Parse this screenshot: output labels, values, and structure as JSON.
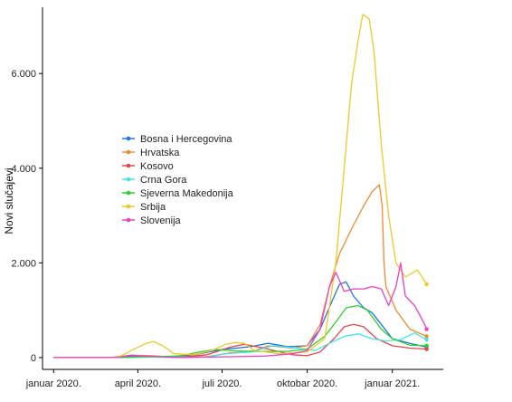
{
  "chart_data": {
    "type": "line",
    "ylabel": "Novi slučajevi",
    "xlabel": "",
    "x_ticks": [
      "januar 2020.",
      "april 2020.",
      "juli 2020.",
      "oktobar 2020.",
      "januar 2021."
    ],
    "y_ticks": [
      "0",
      "2.000",
      "4.000",
      "6.000"
    ],
    "ylim": [
      -250,
      7400
    ],
    "legend_position": "center-left",
    "grid": false,
    "series": [
      {
        "name": "Bosna i Hercegovina",
        "color": "#1f77e4",
        "points": [
          [
            "2020-01-01",
            0
          ],
          [
            "2020-03-01",
            0
          ],
          [
            "2020-04-01",
            30
          ],
          [
            "2020-05-01",
            15
          ],
          [
            "2020-06-01",
            60
          ],
          [
            "2020-07-01",
            170
          ],
          [
            "2020-08-01",
            230
          ],
          [
            "2020-08-20",
            300
          ],
          [
            "2020-09-10",
            230
          ],
          [
            "2020-10-01",
            250
          ],
          [
            "2020-10-15",
            600
          ],
          [
            "2020-10-28",
            1200
          ],
          [
            "2020-11-05",
            1550
          ],
          [
            "2020-11-12",
            1600
          ],
          [
            "2020-11-20",
            1300
          ],
          [
            "2020-12-01",
            1050
          ],
          [
            "2020-12-10",
            950
          ],
          [
            "2020-12-20",
            700
          ],
          [
            "2021-01-01",
            400
          ],
          [
            "2021-01-20",
            300
          ],
          [
            "2021-02-07",
            220
          ]
        ]
      },
      {
        "name": "Hrvatska",
        "color": "#f08a32",
        "points": [
          [
            "2020-01-01",
            0
          ],
          [
            "2020-03-01",
            0
          ],
          [
            "2020-03-25",
            50
          ],
          [
            "2020-04-15",
            40
          ],
          [
            "2020-05-15",
            5
          ],
          [
            "2020-06-15",
            20
          ],
          [
            "2020-07-10",
            100
          ],
          [
            "2020-08-01",
            120
          ],
          [
            "2020-08-20",
            250
          ],
          [
            "2020-09-15",
            200
          ],
          [
            "2020-10-01",
            250
          ],
          [
            "2020-10-15",
            700
          ],
          [
            "2020-10-25",
            1500
          ],
          [
            "2020-11-05",
            2200
          ],
          [
            "2020-11-20",
            2800
          ],
          [
            "2020-12-01",
            3200
          ],
          [
            "2020-12-10",
            3500
          ],
          [
            "2020-12-18",
            3650
          ],
          [
            "2020-12-21",
            3200
          ],
          [
            "2020-12-23",
            2000
          ],
          [
            "2020-12-25",
            1500
          ],
          [
            "2021-01-05",
            1000
          ],
          [
            "2021-01-20",
            600
          ],
          [
            "2021-02-07",
            450
          ]
        ]
      },
      {
        "name": "Kosovo",
        "color": "#e8454a",
        "points": [
          [
            "2020-01-01",
            0
          ],
          [
            "2020-03-15",
            0
          ],
          [
            "2020-04-10",
            20
          ],
          [
            "2020-05-15",
            5
          ],
          [
            "2020-06-15",
            60
          ],
          [
            "2020-07-10",
            220
          ],
          [
            "2020-07-25",
            280
          ],
          [
            "2020-08-15",
            200
          ],
          [
            "2020-09-15",
            60
          ],
          [
            "2020-10-01",
            40
          ],
          [
            "2020-10-15",
            120
          ],
          [
            "2020-10-30",
            400
          ],
          [
            "2020-11-10",
            650
          ],
          [
            "2020-11-20",
            700
          ],
          [
            "2020-12-01",
            650
          ],
          [
            "2020-12-15",
            400
          ],
          [
            "2021-01-01",
            250
          ],
          [
            "2021-01-20",
            200
          ],
          [
            "2021-02-07",
            180
          ]
        ]
      },
      {
        "name": "Crna Gora",
        "color": "#3fe8e8",
        "points": [
          [
            "2020-01-01",
            0
          ],
          [
            "2020-03-20",
            0
          ],
          [
            "2020-04-10",
            10
          ],
          [
            "2020-05-15",
            0
          ],
          [
            "2020-06-15",
            10
          ],
          [
            "2020-07-05",
            80
          ],
          [
            "2020-08-01",
            120
          ],
          [
            "2020-08-25",
            250
          ],
          [
            "2020-09-20",
            200
          ],
          [
            "2020-10-10",
            150
          ],
          [
            "2020-10-25",
            300
          ],
          [
            "2020-11-10",
            450
          ],
          [
            "2020-11-25",
            500
          ],
          [
            "2020-12-10",
            400
          ],
          [
            "2020-12-25",
            350
          ],
          [
            "2021-01-10",
            380
          ],
          [
            "2021-01-25",
            520
          ],
          [
            "2021-02-07",
            380
          ]
        ]
      },
      {
        "name": "Sjeverna Makedonija",
        "color": "#2fcf2f",
        "points": [
          [
            "2020-01-01",
            0
          ],
          [
            "2020-03-15",
            0
          ],
          [
            "2020-04-10",
            20
          ],
          [
            "2020-05-15",
            30
          ],
          [
            "2020-06-10",
            130
          ],
          [
            "2020-06-25",
            170
          ],
          [
            "2020-07-15",
            140
          ],
          [
            "2020-08-10",
            130
          ],
          [
            "2020-09-10",
            130
          ],
          [
            "2020-10-01",
            180
          ],
          [
            "2020-10-20",
            450
          ],
          [
            "2020-11-01",
            750
          ],
          [
            "2020-11-12",
            1050
          ],
          [
            "2020-11-25",
            1100
          ],
          [
            "2020-12-05",
            1000
          ],
          [
            "2020-12-20",
            600
          ],
          [
            "2021-01-01",
            400
          ],
          [
            "2021-01-20",
            260
          ],
          [
            "2021-02-07",
            250
          ]
        ]
      },
      {
        "name": "Srbija",
        "color": "#f0c828",
        "points": [
          [
            "2020-01-01",
            0
          ],
          [
            "2020-03-10",
            0
          ],
          [
            "2020-03-25",
            150
          ],
          [
            "2020-04-10",
            300
          ],
          [
            "2020-04-18",
            340
          ],
          [
            "2020-04-28",
            250
          ],
          [
            "2020-05-10",
            80
          ],
          [
            "2020-06-01",
            60
          ],
          [
            "2020-06-20",
            150
          ],
          [
            "2020-07-05",
            280
          ],
          [
            "2020-07-15",
            320
          ],
          [
            "2020-07-25",
            300
          ],
          [
            "2020-08-05",
            150
          ],
          [
            "2020-09-01",
            80
          ],
          [
            "2020-10-01",
            120
          ],
          [
            "2020-10-20",
            400
          ],
          [
            "2020-11-01",
            2000
          ],
          [
            "2020-11-10",
            4000
          ],
          [
            "2020-11-18",
            5800
          ],
          [
            "2020-11-25",
            6700
          ],
          [
            "2020-11-30",
            7250
          ],
          [
            "2020-12-07",
            7150
          ],
          [
            "2020-12-12",
            6500
          ],
          [
            "2020-12-20",
            4500
          ],
          [
            "2020-12-28",
            3000
          ],
          [
            "2021-01-05",
            2000
          ],
          [
            "2021-01-15",
            1700
          ],
          [
            "2021-01-28",
            1850
          ],
          [
            "2021-02-07",
            1550
          ]
        ]
      },
      {
        "name": "Slovenija",
        "color": "#e840c8",
        "points": [
          [
            "2020-01-01",
            0
          ],
          [
            "2020-03-10",
            0
          ],
          [
            "2020-03-25",
            50
          ],
          [
            "2020-04-10",
            30
          ],
          [
            "2020-05-15",
            0
          ],
          [
            "2020-06-15",
            10
          ],
          [
            "2020-07-15",
            20
          ],
          [
            "2020-08-15",
            30
          ],
          [
            "2020-09-15",
            80
          ],
          [
            "2020-10-01",
            150
          ],
          [
            "2020-10-15",
            600
          ],
          [
            "2020-10-25",
            1500
          ],
          [
            "2020-11-01",
            1800
          ],
          [
            "2020-11-10",
            1400
          ],
          [
            "2020-11-20",
            1450
          ],
          [
            "2020-12-01",
            1450
          ],
          [
            "2020-12-10",
            1500
          ],
          [
            "2020-12-20",
            1450
          ],
          [
            "2020-12-28",
            1100
          ],
          [
            "2021-01-05",
            1500
          ],
          [
            "2021-01-10",
            2000
          ],
          [
            "2021-01-15",
            1300
          ],
          [
            "2021-01-25",
            1100
          ],
          [
            "2021-02-05",
            700
          ],
          [
            "2021-02-07",
            600
          ]
        ]
      }
    ]
  }
}
